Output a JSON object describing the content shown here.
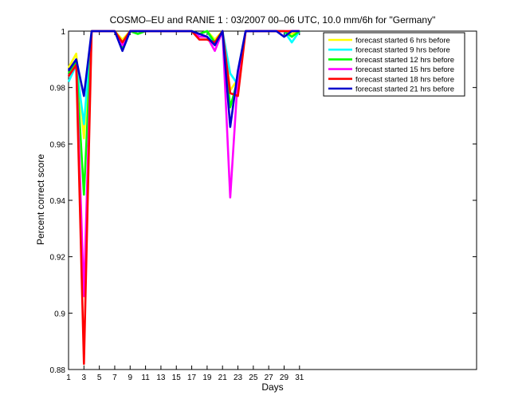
{
  "chart_data": {
    "type": "line",
    "title": "COSMO–EU and RANIE 1 : 03/2007 00–06 UTC, 10.0 mm/6h for \"Germany\"",
    "xlabel": "Days",
    "ylabel": "Percent correct score",
    "xlim": [
      1,
      54
    ],
    "ylim": [
      0.88,
      1.0
    ],
    "xticks": [
      1,
      3,
      5,
      7,
      9,
      11,
      13,
      15,
      17,
      19,
      21,
      23,
      25,
      27,
      29,
      31
    ],
    "yticks": [
      0.88,
      0.9,
      0.92,
      0.94,
      0.96,
      0.98,
      1
    ],
    "ytick_labels": [
      "0.88",
      "0.9",
      "0.92",
      "0.94",
      "0.96",
      "0.98",
      "1"
    ],
    "legend_position": "top-right",
    "grid": false,
    "x": [
      1,
      2,
      3,
      4,
      5,
      6,
      7,
      8,
      9,
      10,
      11,
      12,
      13,
      14,
      15,
      16,
      17,
      18,
      19,
      20,
      21,
      22,
      23,
      24,
      25,
      26,
      27,
      28,
      29,
      30,
      31
    ],
    "series": [
      {
        "name": "forecast started 6 hrs before",
        "color": "#ffff00",
        "values": [
          0.987,
          0.992,
          0.962,
          1.0,
          1.0,
          1.0,
          1.0,
          0.997,
          1.0,
          1.0,
          1.0,
          1.0,
          1.0,
          1.0,
          1.0,
          1.0,
          1.0,
          0.999,
          1.0,
          0.997,
          1.0,
          0.979,
          0.983,
          1.0,
          1.0,
          1.0,
          1.0,
          1.0,
          1.0,
          0.999,
          1.0
        ]
      },
      {
        "name": "forecast started 9 hrs before",
        "color": "#00ffff",
        "values": [
          0.982,
          0.988,
          0.967,
          1.0,
          1.0,
          1.0,
          1.0,
          0.996,
          1.0,
          1.0,
          1.0,
          1.0,
          1.0,
          1.0,
          1.0,
          1.0,
          1.0,
          0.999,
          1.0,
          0.995,
          1.0,
          0.985,
          0.981,
          1.0,
          1.0,
          1.0,
          1.0,
          1.0,
          1.0,
          0.996,
          1.0
        ]
      },
      {
        "name": "forecast started 12 hrs before",
        "color": "#00ff00",
        "values": [
          0.985,
          0.989,
          0.942,
          1.0,
          1.0,
          1.0,
          1.0,
          0.994,
          1.0,
          0.999,
          1.0,
          1.0,
          1.0,
          1.0,
          1.0,
          1.0,
          1.0,
          0.999,
          1.0,
          0.996,
          1.0,
          0.973,
          0.983,
          1.0,
          1.0,
          1.0,
          1.0,
          1.0,
          1.0,
          0.998,
          1.0
        ]
      },
      {
        "name": "forecast started 15 hrs before",
        "color": "#ff00ff",
        "values": [
          0.984,
          0.988,
          0.906,
          1.0,
          1.0,
          1.0,
          1.0,
          0.995,
          1.0,
          1.0,
          1.0,
          1.0,
          1.0,
          1.0,
          1.0,
          1.0,
          1.0,
          0.998,
          0.998,
          0.993,
          1.0,
          0.941,
          0.984,
          1.0,
          1.0,
          1.0,
          1.0,
          1.0,
          1.0,
          1.0,
          1.0
        ]
      },
      {
        "name": "forecast started 18 hrs before",
        "color": "#ff0000",
        "values": [
          0.984,
          0.988,
          0.882,
          1.0,
          1.0,
          1.0,
          1.0,
          0.996,
          1.0,
          1.0,
          1.0,
          1.0,
          1.0,
          1.0,
          1.0,
          1.0,
          1.0,
          0.997,
          0.997,
          0.996,
          1.0,
          0.978,
          0.977,
          1.0,
          1.0,
          1.0,
          1.0,
          1.0,
          1.0,
          1.0,
          1.0
        ]
      },
      {
        "name": "forecast started 21 hrs before",
        "color": "#0000cc",
        "values": [
          0.986,
          0.99,
          0.977,
          1.0,
          1.0,
          1.0,
          1.0,
          0.993,
          1.0,
          1.0,
          1.0,
          1.0,
          1.0,
          1.0,
          1.0,
          1.0,
          1.0,
          0.999,
          0.998,
          0.995,
          1.0,
          0.966,
          0.986,
          1.0,
          1.0,
          1.0,
          1.0,
          1.0,
          0.998,
          1.0,
          1.0
        ]
      }
    ]
  }
}
